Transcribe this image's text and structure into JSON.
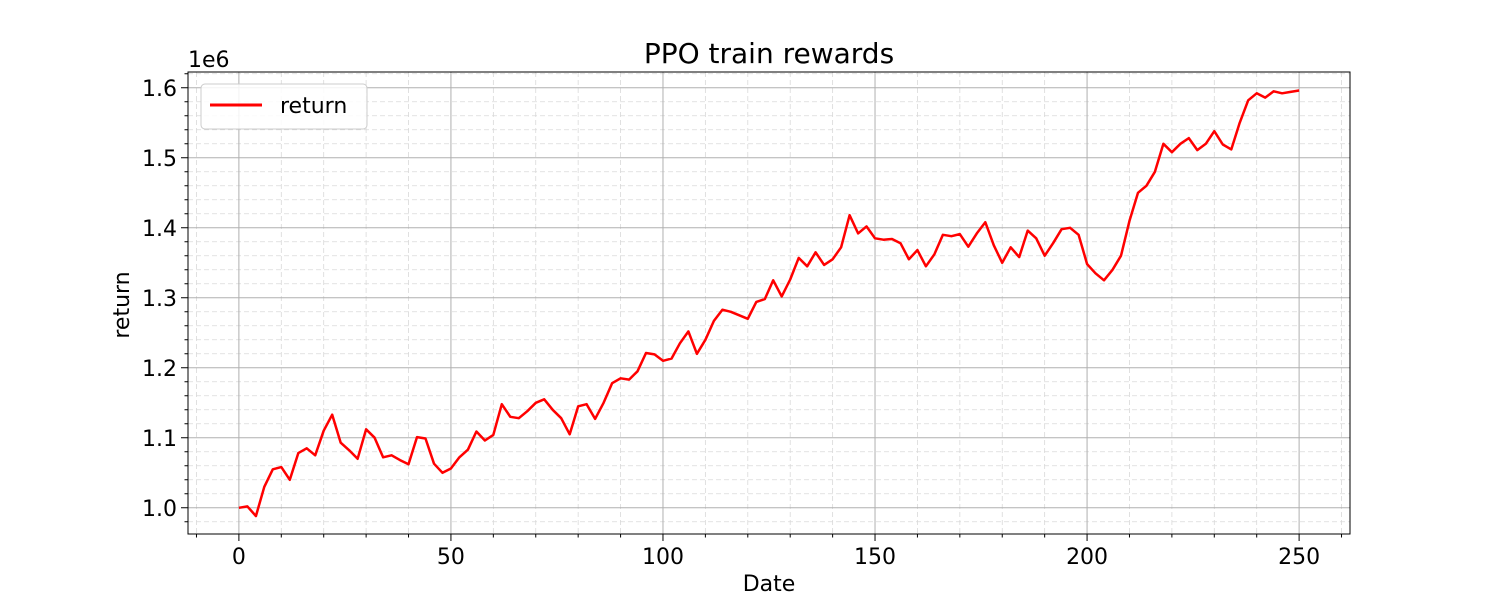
{
  "chart_data": {
    "type": "line",
    "title": "PPO train rewards",
    "xlabel": "Date",
    "ylabel": "return",
    "y_offset_label": "1e6",
    "xlim": [
      -12,
      262
    ],
    "ylim": [
      0.9625,
      1.6225
    ],
    "xticks": [
      0,
      50,
      100,
      150,
      200,
      250
    ],
    "xtick_labels": [
      "0",
      "50",
      "100",
      "150",
      "200",
      "250"
    ],
    "yticks": [
      1.0,
      1.1,
      1.2,
      1.3,
      1.4,
      1.5,
      1.6
    ],
    "ytick_labels": [
      "1.0",
      "1.1",
      "1.2",
      "1.3",
      "1.4",
      "1.5",
      "1.6"
    ],
    "grid": true,
    "minor_grid": true,
    "legend_position": "upper-left",
    "series_color": "#ff0000",
    "series": [
      {
        "name": "return",
        "x": [
          0,
          2,
          4,
          6,
          8,
          10,
          12,
          14,
          16,
          18,
          20,
          22,
          24,
          26,
          28,
          30,
          32,
          34,
          36,
          38,
          40,
          42,
          44,
          46,
          48,
          50,
          52,
          54,
          56,
          58,
          60,
          62,
          64,
          66,
          68,
          70,
          72,
          74,
          76,
          78,
          80,
          82,
          84,
          86,
          88,
          90,
          92,
          94,
          96,
          98,
          100,
          102,
          104,
          106,
          108,
          110,
          112,
          114,
          116,
          118,
          120,
          122,
          124,
          126,
          128,
          130,
          132,
          134,
          136,
          138,
          140,
          142,
          144,
          146,
          148,
          150,
          152,
          154,
          156,
          158,
          160,
          162,
          164,
          166,
          168,
          170,
          172,
          174,
          176,
          178,
          180,
          182,
          184,
          186,
          188,
          190,
          192,
          194,
          196,
          198,
          200,
          202,
          204,
          206,
          208,
          210,
          212,
          214,
          216,
          218,
          220,
          222,
          224,
          226,
          228,
          230,
          232,
          234,
          236,
          238,
          240,
          242,
          244,
          246,
          248,
          250
        ],
        "values": [
          1.0,
          1.002,
          0.988,
          1.03,
          1.055,
          1.058,
          1.04,
          1.078,
          1.085,
          1.075,
          1.11,
          1.133,
          1.093,
          1.082,
          1.07,
          1.112,
          1.1,
          1.072,
          1.075,
          1.068,
          1.062,
          1.101,
          1.099,
          1.063,
          1.05,
          1.056,
          1.072,
          1.083,
          1.109,
          1.096,
          1.104,
          1.148,
          1.13,
          1.128,
          1.138,
          1.15,
          1.155,
          1.14,
          1.128,
          1.105,
          1.145,
          1.148,
          1.127,
          1.15,
          1.178,
          1.185,
          1.183,
          1.195,
          1.221,
          1.219,
          1.21,
          1.213,
          1.235,
          1.252,
          1.22,
          1.24,
          1.267,
          1.283,
          1.28,
          1.275,
          1.27,
          1.294,
          1.298,
          1.325,
          1.302,
          1.326,
          1.357,
          1.345,
          1.365,
          1.347,
          1.355,
          1.372,
          1.418,
          1.392,
          1.402,
          1.385,
          1.383,
          1.384,
          1.378,
          1.355,
          1.368,
          1.345,
          1.362,
          1.39,
          1.388,
          1.391,
          1.373,
          1.392,
          1.408,
          1.375,
          1.35,
          1.372,
          1.358,
          1.396,
          1.385,
          1.36,
          1.378,
          1.398,
          1.4,
          1.39,
          1.348,
          1.335,
          1.325,
          1.34,
          1.36,
          1.41,
          1.45,
          1.46,
          1.48,
          1.52,
          1.508,
          1.52,
          1.528,
          1.511,
          1.52,
          1.538,
          1.519,
          1.512,
          1.55,
          1.582,
          1.592,
          1.586,
          1.595,
          1.592,
          1.594,
          1.596
        ]
      }
    ]
  }
}
